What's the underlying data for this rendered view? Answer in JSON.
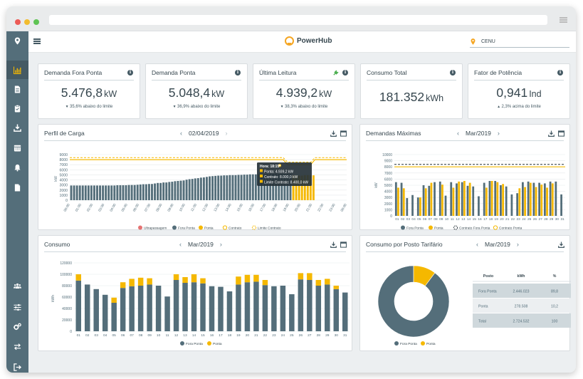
{
  "app": {
    "name": "PowerHub",
    "location": "CENU"
  },
  "sidebar": {
    "items": [
      {
        "name": "location-pin-icon",
        "icon": "pin"
      },
      {
        "name": "bar-chart-icon",
        "icon": "chart",
        "active": true
      },
      {
        "name": "document-icon",
        "icon": "doc"
      },
      {
        "name": "clipboard-icon",
        "icon": "clip"
      },
      {
        "name": "download-icon",
        "icon": "down"
      },
      {
        "name": "calendar-icon",
        "icon": "cal"
      },
      {
        "name": "bell-icon",
        "icon": "bell"
      },
      {
        "name": "file-icon",
        "icon": "file"
      }
    ],
    "bottom_items": [
      {
        "name": "users-icon",
        "icon": "users"
      },
      {
        "name": "sliders-icon",
        "icon": "sliders"
      },
      {
        "name": "cogs-icon",
        "icon": "cogs"
      },
      {
        "name": "transfer-icon",
        "icon": "transfer"
      },
      {
        "name": "logout-icon",
        "icon": "logout"
      }
    ]
  },
  "kpis": [
    {
      "title": "Demanda Fora Ponta",
      "value": "5.476,8",
      "unit": "kW",
      "sub": "35,6% abaixo do limite",
      "trend": "down"
    },
    {
      "title": "Demanda Ponta",
      "value": "5.048,4",
      "unit": "kW",
      "sub": "36,9% abaixo do limite",
      "trend": "down"
    },
    {
      "title": "Última Leitura",
      "value": "4.939,2",
      "unit": "kW",
      "sub": "38,3% abaixo do limite",
      "trend": "down",
      "plug": true
    },
    {
      "title": "Consumo Total",
      "value": "181.352",
      "unit": "kWh",
      "sub": "",
      "trend": ""
    },
    {
      "title": "Fator de Potência",
      "value": "0,941",
      "unit": "Ind",
      "sub": "2,3% acima do limite",
      "trend": "up"
    }
  ],
  "colors": {
    "fora_ponta": "#546e7a",
    "ponta": "#f5b800",
    "contrato": "#f5b800",
    "ultrapassagem": "#e57373",
    "limite": "#f5b800",
    "dark": "#37474f"
  },
  "perfil": {
    "title": "Perfil de Carga",
    "date": "02/04/2019",
    "chart_data": {
      "type": "bar",
      "ylim": [
        0,
        9000
      ],
      "yticks": [
        0,
        1000,
        2000,
        3000,
        4000,
        5000,
        6000,
        7000,
        8000,
        9000
      ],
      "ylabel": "kW",
      "xticks": [
        "00:00",
        "01:00",
        "02:00",
        "03:00",
        "04:00",
        "05:00",
        "06:00",
        "07:00",
        "08:00",
        "09:00",
        "10:00",
        "11:00",
        "12:00",
        "13:00",
        "14:00",
        "15:00",
        "16:00",
        "17:00",
        "18:00",
        "19:00",
        "20:00",
        "21:00",
        "22:00",
        "23:00",
        "00:00"
      ],
      "values": [
        2900,
        2900,
        2900,
        2900,
        2900,
        2900,
        2900,
        2900,
        2900,
        2900,
        2900,
        2900,
        2900,
        2900,
        2900,
        2900,
        2950,
        2950,
        2950,
        2950,
        3000,
        3000,
        3000,
        3050,
        3100,
        3150,
        3150,
        3200,
        3200,
        3300,
        3400,
        3400,
        3500,
        3500,
        3600,
        3650,
        3750,
        3800,
        3850,
        3900,
        4050,
        4150,
        4200,
        4300,
        4350,
        4450,
        4500,
        4600,
        4700,
        4750,
        4800,
        4850,
        4850,
        4900,
        4900,
        4950,
        4950,
        4950,
        5000,
        5000,
        5050,
        5050,
        5100,
        5100,
        5100,
        5150,
        5150,
        5150,
        5200,
        5200,
        5200,
        5200,
        5200,
        5200,
        5200,
        5200,
        5200,
        4950,
        4900,
        4850,
        4850,
        4950,
        4950,
        4900,
        4900
      ],
      "ponta_start": 77,
      "contrato": [
        8000,
        8000
      ],
      "limite_contrato": [
        8400,
        8400
      ],
      "dip_start": 74,
      "dip_end": 85,
      "contrato_dip": 7000,
      "limite_dip": 7500,
      "tooltip": [
        "Hora: 18:15",
        "Ponta: 4.939,2 kW",
        "Contrato: 8.000,0 kW",
        "Limite Contrato: 8.400,0 kW"
      ],
      "legend": [
        "Ultrapassagem",
        "Fora Ponta",
        "Ponta",
        "Contrato",
        "Limite Contrato"
      ]
    }
  },
  "demandas": {
    "title": "Demandas Máximas",
    "month": "Mar/2019",
    "chart_data": {
      "type": "bar",
      "ylim": [
        0,
        10000
      ],
      "yticks": [
        0,
        1000,
        2000,
        3000,
        4000,
        5000,
        6000,
        7000,
        8000,
        9000,
        10000
      ],
      "ylabel": "kW",
      "categories": [
        "01",
        "02",
        "03",
        "04",
        "05",
        "06",
        "07",
        "08",
        "09",
        "10",
        "11",
        "12",
        "13",
        "14",
        "15",
        "16",
        "17",
        "18",
        "19",
        "20",
        "21",
        "22",
        "23",
        "24",
        "25",
        "26",
        "27",
        "28",
        "29",
        "30",
        "31"
      ],
      "series": [
        {
          "name": "Fora Ponta",
          "values": [
            5500,
            5400,
            2900,
            3400,
            3000,
            5000,
            4900,
            5500,
            5600,
            3300,
            5500,
            5300,
            5500,
            4900,
            4800,
            3200,
            5400,
            5700,
            5700,
            5000,
            4800,
            3500,
            3700,
            5500,
            5600,
            5400,
            5400,
            5300,
            5600,
            5600,
            3500
          ]
        },
        {
          "name": "Ponta",
          "values": [
            4600,
            4500,
            0,
            0,
            3000,
            4500,
            5400,
            0,
            5100,
            0,
            4600,
            5600,
            5700,
            5400,
            0,
            0,
            4600,
            5700,
            5500,
            5200,
            0,
            0,
            4500,
            4700,
            5400,
            4700,
            5100,
            4600,
            5300,
            0,
            0
          ]
        }
      ],
      "contrato": 8000,
      "limite_contrato": 8400,
      "legend": [
        "Fora Ponta",
        "Ponta",
        "Contrato Fora Ponta",
        "Contrato Ponta"
      ]
    }
  },
  "consumo": {
    "title": "Consumo",
    "month": "Mar/2019",
    "chart_data": {
      "type": "bar",
      "stacked": true,
      "ylim": [
        0,
        120000
      ],
      "yticks": [
        0,
        20000,
        40000,
        60000,
        80000,
        100000,
        120000
      ],
      "ytick_labels": [
        "0",
        "20000",
        "40000",
        "60000",
        "80000",
        "100000",
        "120000"
      ],
      "ylabel": "kWh",
      "categories": [
        "01",
        "02",
        "03",
        "04",
        "05",
        "06",
        "07",
        "08",
        "09",
        "10",
        "11",
        "12",
        "13",
        "14",
        "15",
        "16",
        "17",
        "18",
        "19",
        "20",
        "21",
        "22",
        "23",
        "24",
        "25",
        "26",
        "27",
        "28",
        "29",
        "30",
        "31"
      ],
      "series": [
        {
          "name": "Fora Ponta",
          "values": [
            89000,
            82000,
            74000,
            64000,
            50000,
            76000,
            79000,
            80000,
            82000,
            80000,
            61000,
            90000,
            85000,
            86000,
            84000,
            79000,
            78000,
            70000,
            82000,
            86000,
            87000,
            81000,
            79000,
            80000,
            65000,
            91000,
            90000,
            80000,
            82000,
            74000,
            68000
          ]
        },
        {
          "name": "Ponta",
          "values": [
            11000,
            0,
            0,
            0,
            9000,
            10000,
            13000,
            14000,
            11000,
            0,
            0,
            10000,
            10000,
            14000,
            9000,
            0,
            0,
            0,
            14000,
            13000,
            12000,
            9000,
            0,
            0,
            0,
            11000,
            12000,
            10000,
            10000,
            6000,
            0
          ]
        }
      ],
      "legend": [
        "Fora Ponta",
        "Ponta"
      ]
    }
  },
  "posto": {
    "title": "Consumo por Posto Tarifário",
    "month": "Mar/2019",
    "chart_data": {
      "type": "pie",
      "categories": [
        "Fora Ponta",
        "Ponta"
      ],
      "values": [
        2446023,
        278508
      ],
      "legend": [
        "Fora Ponta",
        "Ponta"
      ]
    },
    "table": {
      "headers": [
        "Posto",
        "kWh",
        "%"
      ],
      "rows": [
        [
          "Fora Ponta",
          "2.446.023",
          "89,8"
        ],
        [
          "Ponta",
          "278.508",
          "10,2"
        ],
        [
          "Total",
          "2.724.532",
          "100"
        ]
      ]
    }
  }
}
